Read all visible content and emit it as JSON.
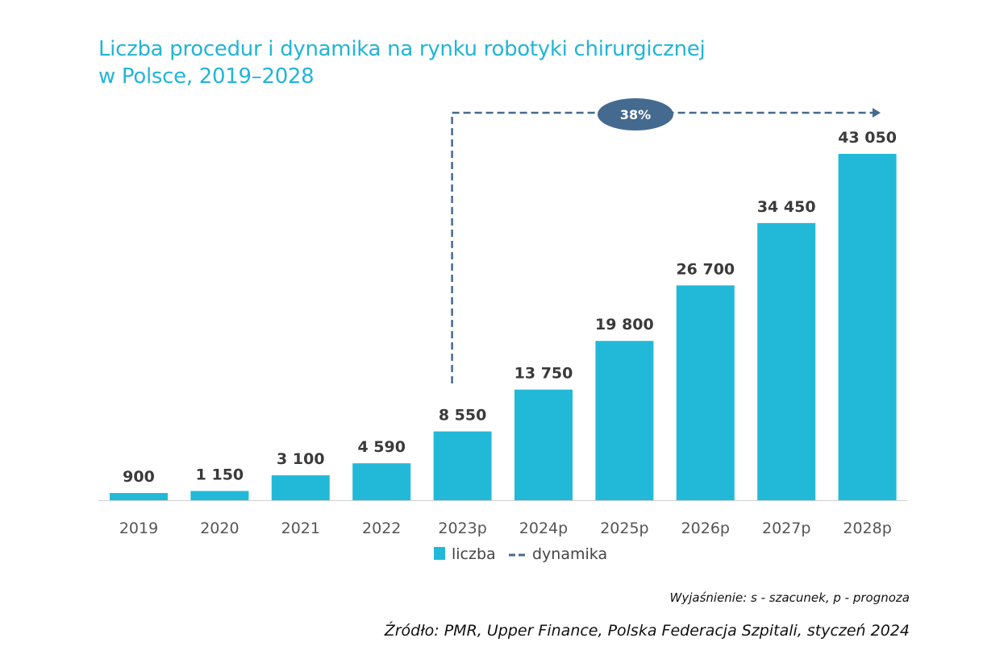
{
  "chart_data": {
    "type": "bar",
    "title_line1": "Liczba procedur i dynamika na rynku robotyki chirurgicznej",
    "title_line2": "w Polsce, 2019–2028",
    "categories": [
      "2019",
      "2020",
      "2021",
      "2022",
      "2023p",
      "2024p",
      "2025p",
      "2026p",
      "2027p",
      "2028p"
    ],
    "series": [
      {
        "name": "liczba",
        "values": [
          900,
          1150,
          3100,
          4590,
          8550,
          13750,
          19800,
          26700,
          34450,
          43050
        ]
      }
    ],
    "value_labels": [
      "900",
      "1 150",
      "3 100",
      "4 590",
      "8 550",
      "13 750",
      "19 800",
      "26 700",
      "34 450",
      "43 050"
    ],
    "annotation": {
      "label": "38%",
      "from": "2023p",
      "to": "2028p",
      "series": "dynamika"
    },
    "legend": {
      "items": [
        "liczba",
        "dynamika"
      ],
      "placement": "bottom"
    },
    "ylim": [
      0,
      43050
    ],
    "grid": false,
    "colors": {
      "bar": "#22b9d9",
      "dynamika": "#456a8f",
      "title": "#22b5d7"
    }
  },
  "footer": {
    "note": "Wyjaśnienie: s - szacunek, p - prognoza",
    "source": "Źródło: PMR, Upper Finance, Polska Federacja Szpitali, styczeń 2024"
  }
}
